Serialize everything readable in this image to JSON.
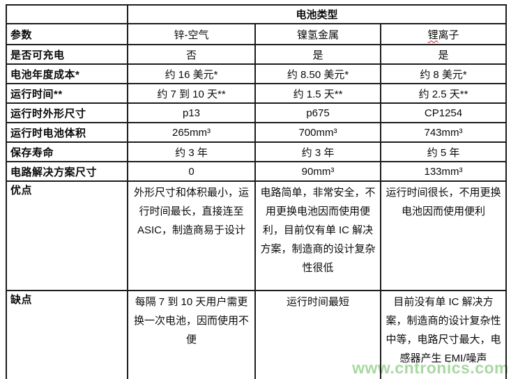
{
  "table": {
    "span_header": "电池类型",
    "header_row": {
      "param": "参数",
      "cols": [
        "锌-空气",
        "镍氢金属",
        "锂离子"
      ]
    },
    "rows": [
      {
        "label": "是否可充电",
        "values": [
          "否",
          "是",
          "是"
        ]
      },
      {
        "label": "电池年度成本*",
        "values": [
          "约 16 美元*",
          "约 8.50 美元*",
          "约 8 美元*"
        ]
      },
      {
        "label": "运行时间**",
        "values": [
          "约 7 到 10 天**",
          "约 1.5 天**",
          "约 2.5 天**"
        ]
      },
      {
        "label": "运行时外形尺寸",
        "values": [
          "p13",
          "p675",
          "CP1254"
        ]
      },
      {
        "label": "运行时电池体积",
        "values": [
          "265mm³",
          "700mm³",
          "743mm³"
        ]
      },
      {
        "label": "保存寿命",
        "values": [
          "约 3 年",
          "约 3 年",
          "约 5 年"
        ]
      },
      {
        "label": "电路解决方案尺寸",
        "values": [
          "0",
          "90mm³",
          "133mm³"
        ]
      },
      {
        "label": "优点",
        "values": [
          "外形尺寸和体积最小，运行时间最长，直接连至 ASIC，制造商易于设计",
          "电路简单，非常安全，不用更换电池因而使用便利，目前仅有单 IC 解决方案，制造商的设计复杂性很低",
          "运行时间很长，不用更换电池因而使用便利"
        ]
      },
      {
        "label": "缺点",
        "values": [
          "每隔 7 到 10 天用户需更换一次电池，因而使用不便",
          "运行时间最短",
          "目前没有单 IC 解决方案，制造商的设计复杂性中等，电路尺寸最大，电感器产生 EMI/噪声"
        ]
      }
    ]
  },
  "watermark": {
    "text": "www.cntronics.com",
    "color": "#a9d8a2"
  }
}
